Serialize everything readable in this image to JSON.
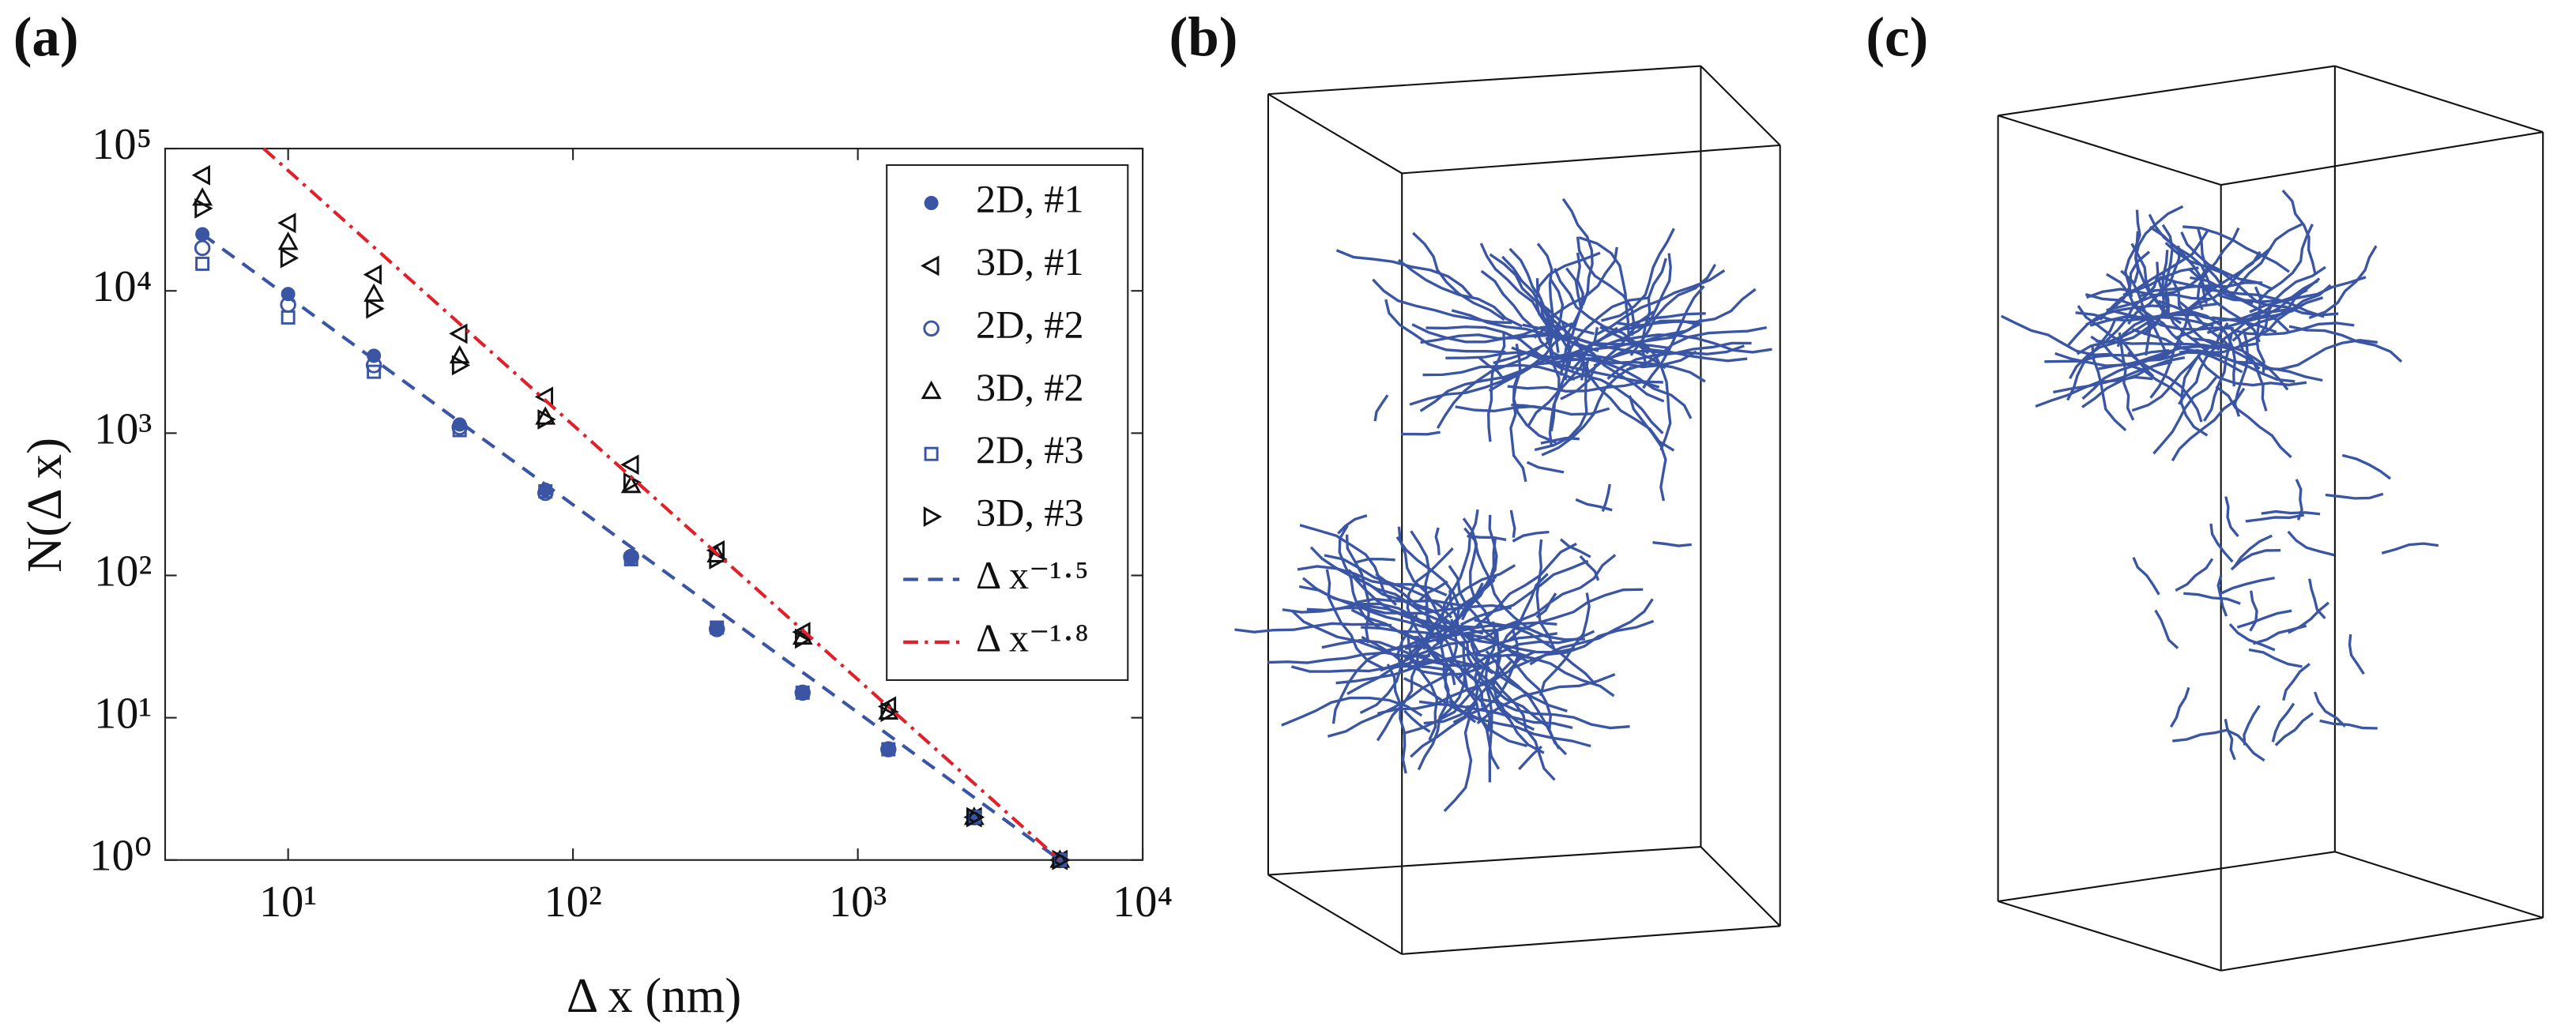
{
  "chart_data": {
    "type": "scatter",
    "panel_label": "(a)",
    "xlabel": "Δ x (nm)",
    "ylabel": "N(Δ x)",
    "log_x": true,
    "log_y": true,
    "xlim": [
      3.7,
      10000
    ],
    "ylim": [
      1,
      100000
    ],
    "xticks": [
      {
        "value": 10,
        "label": "10¹"
      },
      {
        "value": 100,
        "label": "10²"
      },
      {
        "value": 1000,
        "label": "10³"
      },
      {
        "value": 10000,
        "label": "10⁴"
      }
    ],
    "yticks": [
      {
        "value": 1,
        "label": "10⁰"
      },
      {
        "value": 10,
        "label": "10¹"
      },
      {
        "value": 100,
        "label": "10²"
      },
      {
        "value": 1000,
        "label": "10³"
      },
      {
        "value": 10000,
        "label": "10⁴"
      },
      {
        "value": 100000,
        "label": "10⁵"
      }
    ],
    "legend": "upper right",
    "series": [
      {
        "name": "2D, #1",
        "color": "#3a55a4",
        "marker": "star",
        "x": [
          5,
          10,
          20,
          40,
          80,
          160,
          320,
          640,
          1280,
          2560,
          5120
        ],
        "values": [
          25000,
          9500,
          3500,
          1150,
          400,
          135,
          43,
          15,
          6,
          2,
          1
        ]
      },
      {
        "name": "3D, #1",
        "color": "#111111",
        "marker": "triangle-left",
        "x": [
          5,
          10,
          20,
          40,
          80,
          160,
          320,
          640,
          1280,
          2560,
          5120
        ],
        "values": [
          65000,
          30000,
          13000,
          5000,
          1800,
          600,
          150,
          40,
          12,
          2,
          1
        ]
      },
      {
        "name": "2D, #2",
        "color": "#3a55a4",
        "marker": "circle",
        "x": [
          5,
          10,
          20,
          40,
          80,
          160,
          320,
          640,
          1280,
          2560,
          5120
        ],
        "values": [
          20000,
          8000,
          3000,
          1100,
          380,
          135,
          42,
          15,
          6,
          2,
          1
        ]
      },
      {
        "name": "3D, #2",
        "color": "#111111",
        "marker": "triangle-up",
        "x": [
          5,
          10,
          20,
          40,
          80,
          160,
          320,
          640,
          1280,
          2560,
          5120
        ],
        "values": [
          45000,
          22000,
          9500,
          3500,
          1300,
          430,
          140,
          37,
          11,
          2,
          1
        ]
      },
      {
        "name": "2D, #3",
        "color": "#3a55a4",
        "marker": "square",
        "x": [
          5,
          10,
          20,
          40,
          80,
          160,
          320,
          640,
          1280,
          2560,
          5120
        ],
        "values": [
          15500,
          6500,
          2700,
          1050,
          390,
          130,
          43,
          15,
          6,
          2,
          1
        ]
      },
      {
        "name": "3D, #3",
        "color": "#111111",
        "marker": "triangle-right",
        "x": [
          5,
          10,
          20,
          40,
          80,
          160,
          320,
          640,
          1280,
          2560,
          5120
        ],
        "values": [
          38000,
          17000,
          7500,
          3000,
          1250,
          450,
          130,
          36,
          11,
          2,
          1
        ]
      },
      {
        "name": "Δ x⁻¹·⁵",
        "color": "#3a55a4",
        "marker": "dashed",
        "x": [
          5,
          5120
        ],
        "values": [
          25000,
          1
        ]
      },
      {
        "name": "Δ x⁻¹·⁸",
        "color": "#e0202a",
        "marker": "dashdot",
        "x": [
          8.2,
          5120
        ],
        "values": [
          100000,
          1
        ]
      }
    ]
  },
  "panels": [
    {
      "label": "(b)"
    },
    {
      "label": "(c)"
    }
  ]
}
